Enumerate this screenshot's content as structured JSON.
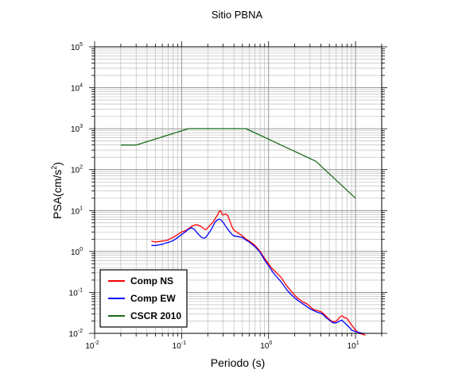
{
  "chart_data": {
    "type": "line",
    "title": "Sitio PBNA",
    "xlabel": "Periodo (s)",
    "ylabel_base": "PSA(cm/s",
    "ylabel_sup": "2",
    "ylabel_close": ")",
    "x_scale": "log",
    "y_scale": "log",
    "xlim": [
      0.01,
      20
    ],
    "ylim": [
      0.01,
      100000
    ],
    "grid": true,
    "legend_position": "bottom-left",
    "x_ticks": [
      {
        "value": 0.01,
        "base": "10",
        "exp": "-2"
      },
      {
        "value": 0.1,
        "base": "10",
        "exp": "-1"
      },
      {
        "value": 1,
        "base": "10",
        "exp": "0"
      },
      {
        "value": 10,
        "base": "10",
        "exp": "1"
      }
    ],
    "y_ticks": [
      {
        "value": 0.01,
        "base": "10",
        "exp": "-2"
      },
      {
        "value": 0.1,
        "base": "10",
        "exp": "-1"
      },
      {
        "value": 1,
        "base": "10",
        "exp": "0"
      },
      {
        "value": 10,
        "base": "10",
        "exp": "1"
      },
      {
        "value": 100,
        "base": "10",
        "exp": "2"
      },
      {
        "value": 1000,
        "base": "10",
        "exp": "3"
      },
      {
        "value": 10000,
        "base": "10",
        "exp": "4"
      },
      {
        "value": 100000,
        "base": "10",
        "exp": "5"
      }
    ],
    "series": [
      {
        "name": "Comp NS",
        "color": "#ff0000",
        "x": [
          0.045,
          0.05,
          0.055,
          0.06,
          0.065,
          0.07,
          0.075,
          0.08,
          0.085,
          0.09,
          0.1,
          0.11,
          0.12,
          0.13,
          0.14,
          0.15,
          0.16,
          0.17,
          0.18,
          0.19,
          0.2,
          0.21,
          0.22,
          0.23,
          0.24,
          0.25,
          0.26,
          0.27,
          0.28,
          0.29,
          0.3,
          0.32,
          0.34,
          0.36,
          0.38,
          0.4,
          0.45,
          0.5,
          0.55,
          0.6,
          0.7,
          0.8,
          0.9,
          1.0,
          1.1,
          1.2,
          1.4,
          1.6,
          1.8,
          2.0,
          2.2,
          2.5,
          2.8,
          3.0,
          3.3,
          3.6,
          4.0,
          4.3,
          4.6,
          5.0,
          5.3,
          5.6,
          6.0,
          6.3,
          6.6,
          7.0,
          7.5,
          8.0,
          8.5,
          9.0,
          10.0,
          11.0,
          12.0,
          13.0
        ],
        "y": [
          1.8,
          1.7,
          1.75,
          1.8,
          1.85,
          1.9,
          2.1,
          2.2,
          2.4,
          2.6,
          3.0,
          3.2,
          3.6,
          4.1,
          4.4,
          4.5,
          4.3,
          4.0,
          3.6,
          3.4,
          3.8,
          4.3,
          4.7,
          5.3,
          6.0,
          7.0,
          7.8,
          9.5,
          10.0,
          8.5,
          7.8,
          8.3,
          7.5,
          5.5,
          4.0,
          3.3,
          2.8,
          2.4,
          2.0,
          1.8,
          1.4,
          1.0,
          0.68,
          0.5,
          0.38,
          0.32,
          0.23,
          0.15,
          0.11,
          0.085,
          0.07,
          0.058,
          0.052,
          0.045,
          0.038,
          0.036,
          0.034,
          0.03,
          0.026,
          0.022,
          0.02,
          0.019,
          0.02,
          0.022,
          0.025,
          0.027,
          0.024,
          0.023,
          0.019,
          0.016,
          0.012,
          0.01,
          0.0095,
          0.009
        ]
      },
      {
        "name": "Comp EW",
        "color": "#0000ff",
        "x": [
          0.045,
          0.05,
          0.055,
          0.06,
          0.065,
          0.07,
          0.075,
          0.08,
          0.085,
          0.09,
          0.1,
          0.11,
          0.12,
          0.13,
          0.14,
          0.15,
          0.16,
          0.17,
          0.18,
          0.19,
          0.2,
          0.21,
          0.22,
          0.23,
          0.24,
          0.25,
          0.26,
          0.27,
          0.28,
          0.29,
          0.3,
          0.32,
          0.34,
          0.36,
          0.38,
          0.4,
          0.45,
          0.5,
          0.55,
          0.6,
          0.7,
          0.8,
          0.9,
          1.0,
          1.1,
          1.2,
          1.4,
          1.6,
          1.8,
          2.0,
          2.2,
          2.5,
          2.8,
          3.0,
          3.3,
          3.6,
          4.0,
          4.3,
          4.6,
          5.0,
          5.3,
          5.6,
          6.0,
          6.3,
          6.6,
          7.0,
          7.5,
          8.0,
          8.5,
          9.0,
          10.0,
          11.0,
          12.0,
          13.0
        ],
        "y": [
          1.4,
          1.4,
          1.45,
          1.5,
          1.6,
          1.65,
          1.75,
          1.85,
          2.0,
          2.2,
          2.6,
          3.0,
          3.5,
          3.8,
          3.5,
          2.9,
          2.5,
          2.2,
          2.1,
          2.2,
          2.6,
          3.0,
          3.5,
          4.2,
          5.0,
          5.6,
          5.9,
          6.2,
          6.0,
          5.6,
          5.2,
          4.2,
          3.5,
          3.0,
          2.6,
          2.4,
          2.3,
          2.2,
          1.9,
          1.7,
          1.3,
          0.95,
          0.62,
          0.45,
          0.33,
          0.26,
          0.18,
          0.12,
          0.09,
          0.074,
          0.062,
          0.052,
          0.044,
          0.04,
          0.036,
          0.033,
          0.031,
          0.028,
          0.024,
          0.021,
          0.019,
          0.018,
          0.018,
          0.019,
          0.02,
          0.021,
          0.018,
          0.016,
          0.014,
          0.012,
          0.011,
          0.0105,
          0.01,
          0.01
        ]
      },
      {
        "name": "CSCR 2010",
        "color": "#1a6b1a",
        "x": [
          0.02,
          0.03,
          0.12,
          0.55,
          3.5,
          10.0
        ],
        "y": [
          400,
          400,
          1000,
          1000,
          160,
          20
        ]
      }
    ]
  }
}
